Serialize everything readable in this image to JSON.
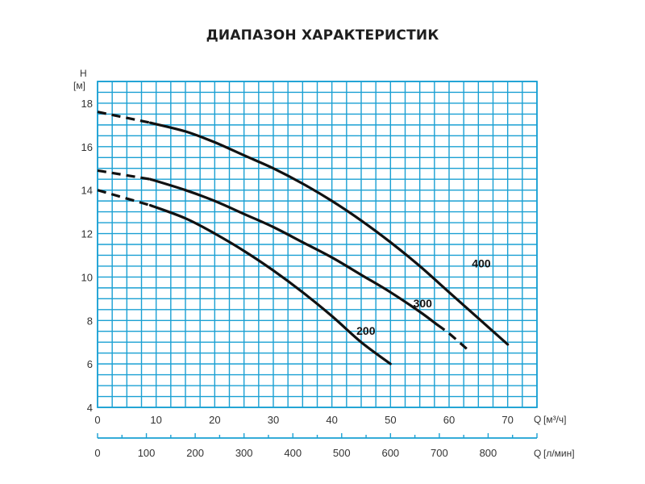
{
  "chart_data": {
    "type": "line",
    "title": "ДИАПАЗОН ХАРАКТЕРИСТИК",
    "ylabel": "H",
    "yunit": "[м]",
    "xlabel": "Q",
    "xunit": "[м³/ч]",
    "x2label": "Q",
    "x2unit": "[л/мин]",
    "xlim": [
      0,
      75
    ],
    "ylim": [
      4,
      19
    ],
    "x2lim": [
      0,
      900
    ],
    "xticks": [
      0,
      10,
      20,
      30,
      40,
      50,
      60,
      70
    ],
    "yticks": [
      4,
      6,
      8,
      10,
      12,
      14,
      16,
      18
    ],
    "x2ticks": [
      0,
      100,
      200,
      300,
      400,
      500,
      600,
      700,
      800
    ],
    "grid": true,
    "grid_color": "#1aa0d3",
    "line_color": "#111111",
    "series": [
      {
        "name": "200",
        "dashed_x_max": 9,
        "x": [
          0,
          9,
          15,
          20,
          25,
          30,
          35,
          40,
          45,
          50
        ],
        "y": [
          14.0,
          13.3,
          12.7,
          12.0,
          11.2,
          10.3,
          9.3,
          8.2,
          7.0,
          6.0
        ]
      },
      {
        "name": "300",
        "dashed_x_max": 9,
        "dashed_x_min": 58,
        "x": [
          0,
          9,
          15,
          20,
          25,
          30,
          35,
          40,
          45,
          50,
          55,
          58,
          60,
          63
        ],
        "y": [
          14.9,
          14.5,
          14.0,
          13.5,
          12.9,
          12.3,
          11.6,
          10.9,
          10.1,
          9.3,
          8.4,
          7.8,
          7.4,
          6.7
        ]
      },
      {
        "name": "400",
        "dashed_x_max": 9,
        "x": [
          0,
          9,
          15,
          20,
          25,
          30,
          35,
          40,
          45,
          50,
          55,
          60,
          65,
          70
        ],
        "y": [
          17.6,
          17.1,
          16.7,
          16.2,
          15.6,
          15.0,
          14.3,
          13.5,
          12.6,
          11.6,
          10.5,
          9.3,
          8.1,
          6.9
        ]
      }
    ],
    "labels": [
      {
        "series": "200",
        "text": "200",
        "x": 45.8,
        "y": 7.35
      },
      {
        "series": "300",
        "text": "300",
        "x": 55.5,
        "y": 8.6
      },
      {
        "series": "400",
        "text": "400",
        "x": 65.5,
        "y": 10.45
      }
    ]
  }
}
